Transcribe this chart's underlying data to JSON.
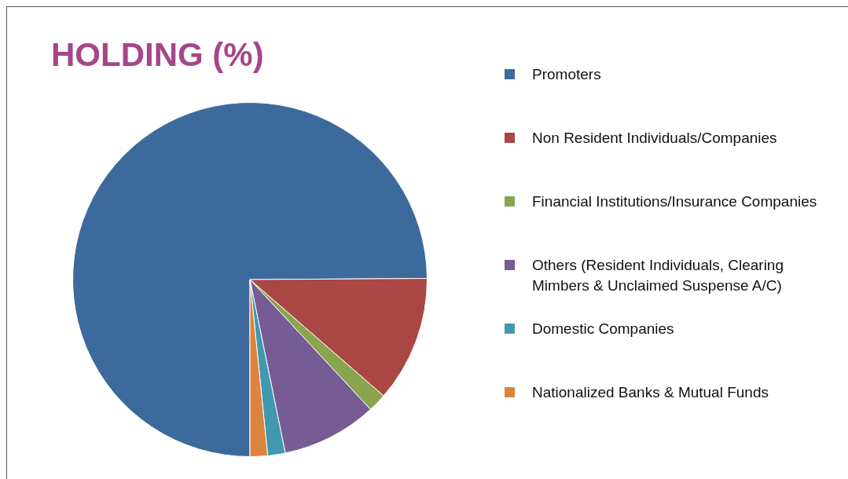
{
  "chart_data": {
    "type": "pie",
    "title": "HOLDING (%)",
    "categories": [
      "Promoters",
      "Non Resident Individuals/Companies",
      "Financial Institutions/Insurance Companies",
      "Others (Resident Individuals, Clearing Mimbers & Unclaimed Suspense A/C)",
      "Domestic Companies",
      "Nationalized Banks & Mutual Funds"
    ],
    "values": [
      74.9,
      11.5,
      1.7,
      8.7,
      1.6,
      1.6
    ],
    "colors": [
      "#3c6a9c",
      "#aa4643",
      "#89a54e",
      "#765b95",
      "#4198af",
      "#db843d"
    ],
    "legend": "right"
  }
}
